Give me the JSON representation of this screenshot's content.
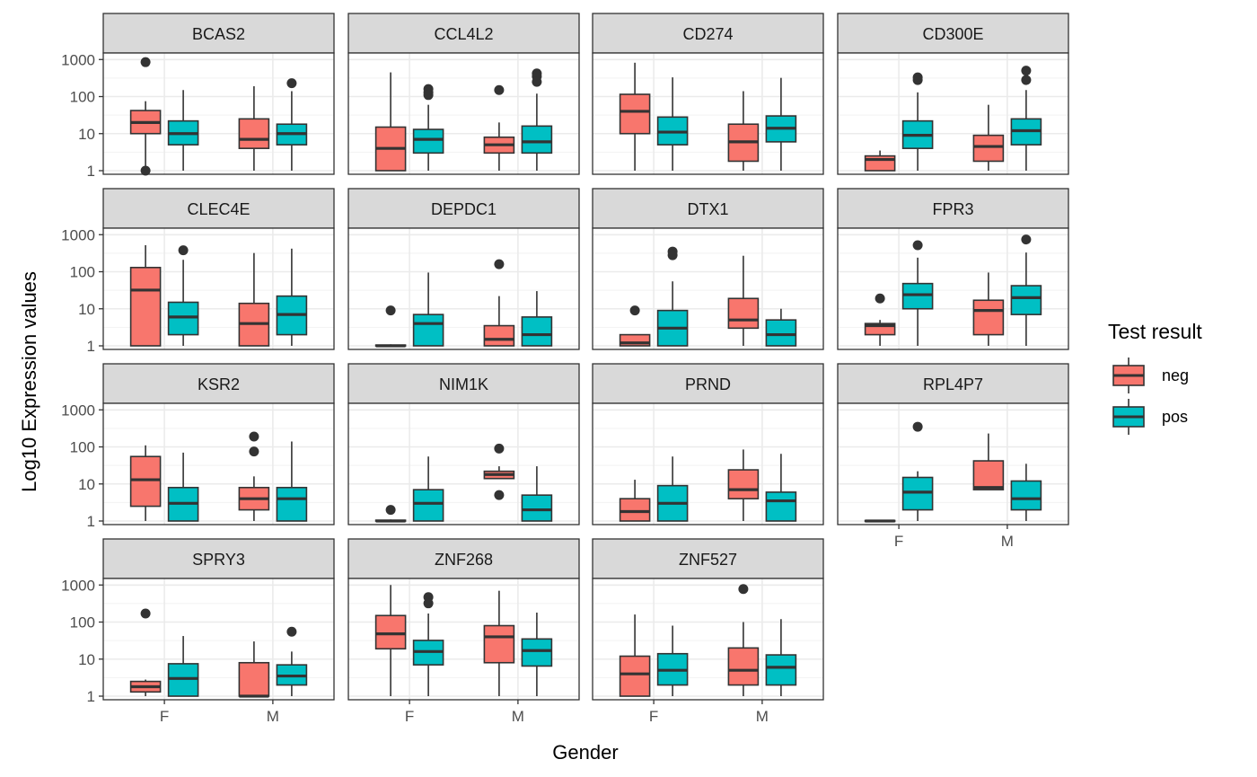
{
  "chart_data": {
    "type": "boxplot",
    "facet_layout": "4 columns, panels in reading order",
    "y_scale": "log10",
    "y_ticks": [
      1,
      10,
      100,
      1000
    ],
    "y_tick_labels": [
      "1",
      "10",
      "100",
      "1000"
    ],
    "ylim": [
      0.8,
      1500
    ],
    "x_categories": [
      "F",
      "M"
    ],
    "xlabel": "Gender",
    "ylabel": "Log10 Expression values",
    "grid": true,
    "legend": {
      "title": "Test result",
      "position": "right",
      "entries": [
        {
          "label": "neg",
          "color": "#F8766D"
        },
        {
          "label": "pos",
          "color": "#00BFC4"
        }
      ]
    },
    "colors": {
      "neg": "#F8766D",
      "pos": "#00BFC4",
      "strip": "#d9d9d9"
    },
    "panels": [
      {
        "title": "BCAS2",
        "boxes": [
          {
            "gender": "F",
            "group": "neg",
            "min": 1,
            "q1": 10,
            "median": 20,
            "q3": 42,
            "max": 75,
            "outliers": [
              850,
              1
            ]
          },
          {
            "gender": "F",
            "group": "pos",
            "min": 1,
            "q1": 5,
            "median": 10,
            "q3": 22,
            "max": 150,
            "outliers": []
          },
          {
            "gender": "M",
            "group": "neg",
            "min": 1,
            "q1": 4,
            "median": 7,
            "q3": 25,
            "max": 190,
            "outliers": []
          },
          {
            "gender": "M",
            "group": "pos",
            "min": 1,
            "q1": 5,
            "median": 10,
            "q3": 18,
            "max": 140,
            "outliers": [
              230
            ]
          }
        ]
      },
      {
        "title": "CCL4L2",
        "boxes": [
          {
            "gender": "F",
            "group": "neg",
            "min": 1,
            "q1": 1,
            "median": 4,
            "q3": 15,
            "max": 450,
            "outliers": []
          },
          {
            "gender": "F",
            "group": "pos",
            "min": 1,
            "q1": 3,
            "median": 7,
            "q3": 13,
            "max": 60,
            "outliers": [
              160,
              130,
              110
            ]
          },
          {
            "gender": "M",
            "group": "neg",
            "min": 1,
            "q1": 3,
            "median": 5,
            "q3": 8,
            "max": 20,
            "outliers": [
              150
            ]
          },
          {
            "gender": "M",
            "group": "pos",
            "min": 1,
            "q1": 3,
            "median": 6,
            "q3": 16,
            "max": 120,
            "outliers": [
              420,
              350,
              250
            ]
          }
        ]
      },
      {
        "title": "CD274",
        "boxes": [
          {
            "gender": "F",
            "group": "neg",
            "min": 1,
            "q1": 10,
            "median": 40,
            "q3": 115,
            "max": 820,
            "outliers": []
          },
          {
            "gender": "F",
            "group": "pos",
            "min": 1,
            "q1": 5,
            "median": 11,
            "q3": 28,
            "max": 330,
            "outliers": []
          },
          {
            "gender": "M",
            "group": "neg",
            "min": 1,
            "q1": 1.8,
            "median": 6,
            "q3": 18,
            "max": 140,
            "outliers": []
          },
          {
            "gender": "M",
            "group": "pos",
            "min": 1,
            "q1": 6,
            "median": 14,
            "q3": 30,
            "max": 320,
            "outliers": []
          }
        ]
      },
      {
        "title": "CD300E",
        "boxes": [
          {
            "gender": "F",
            "group": "neg",
            "min": 1,
            "q1": 1,
            "median": 2,
            "q3": 2.5,
            "max": 3.5,
            "outliers": []
          },
          {
            "gender": "F",
            "group": "pos",
            "min": 1,
            "q1": 4,
            "median": 9,
            "q3": 22,
            "max": 130,
            "outliers": [
              330,
              280
            ]
          },
          {
            "gender": "M",
            "group": "neg",
            "min": 1,
            "q1": 1.8,
            "median": 4.5,
            "q3": 9,
            "max": 60,
            "outliers": []
          },
          {
            "gender": "M",
            "group": "pos",
            "min": 1,
            "q1": 5,
            "median": 12,
            "q3": 25,
            "max": 150,
            "outliers": [
              500,
              280
            ]
          }
        ]
      },
      {
        "title": "CLEC4E",
        "boxes": [
          {
            "gender": "F",
            "group": "neg",
            "min": 1,
            "q1": 1,
            "median": 32,
            "q3": 130,
            "max": 520,
            "outliers": []
          },
          {
            "gender": "F",
            "group": "pos",
            "min": 1,
            "q1": 2,
            "median": 6,
            "q3": 15,
            "max": 210,
            "outliers": [
              380
            ]
          },
          {
            "gender": "M",
            "group": "neg",
            "min": 1,
            "q1": 1,
            "median": 4,
            "q3": 14,
            "max": 320,
            "outliers": []
          },
          {
            "gender": "M",
            "group": "pos",
            "min": 1,
            "q1": 2,
            "median": 7,
            "q3": 22,
            "max": 420,
            "outliers": []
          }
        ]
      },
      {
        "title": "DEPDC1",
        "boxes": [
          {
            "gender": "F",
            "group": "neg",
            "min": 1,
            "q1": 1,
            "median": 1,
            "q3": 1.05,
            "max": 1.1,
            "outliers": [
              9
            ]
          },
          {
            "gender": "F",
            "group": "pos",
            "min": 1,
            "q1": 1,
            "median": 4,
            "q3": 7,
            "max": 95,
            "outliers": []
          },
          {
            "gender": "M",
            "group": "neg",
            "min": 1,
            "q1": 1,
            "median": 1.5,
            "q3": 3.5,
            "max": 22,
            "outliers": [
              160
            ]
          },
          {
            "gender": "M",
            "group": "pos",
            "min": 1,
            "q1": 1,
            "median": 2,
            "q3": 6,
            "max": 30,
            "outliers": []
          }
        ]
      },
      {
        "title": "DTX1",
        "boxes": [
          {
            "gender": "F",
            "group": "neg",
            "min": 1,
            "q1": 1,
            "median": 1.2,
            "q3": 2,
            "max": 2,
            "outliers": [
              9
            ]
          },
          {
            "gender": "F",
            "group": "pos",
            "min": 1,
            "q1": 1,
            "median": 3,
            "q3": 9,
            "max": 55,
            "outliers": [
              350,
              280
            ]
          },
          {
            "gender": "M",
            "group": "neg",
            "min": 1,
            "q1": 3,
            "median": 5,
            "q3": 19,
            "max": 270,
            "outliers": []
          },
          {
            "gender": "M",
            "group": "pos",
            "min": 1,
            "q1": 1,
            "median": 2,
            "q3": 5,
            "max": 10,
            "outliers": []
          }
        ]
      },
      {
        "title": "FPR3",
        "boxes": [
          {
            "gender": "F",
            "group": "neg",
            "min": 1,
            "q1": 2,
            "median": 3.5,
            "q3": 4,
            "max": 5,
            "outliers": [
              19
            ]
          },
          {
            "gender": "F",
            "group": "pos",
            "min": 1,
            "q1": 10,
            "median": 24,
            "q3": 48,
            "max": 240,
            "outliers": [
              520
            ]
          },
          {
            "gender": "M",
            "group": "neg",
            "min": 1,
            "q1": 2,
            "median": 9,
            "q3": 17,
            "max": 95,
            "outliers": []
          },
          {
            "gender": "M",
            "group": "pos",
            "min": 1,
            "q1": 7,
            "median": 20,
            "q3": 42,
            "max": 330,
            "outliers": [
              740
            ]
          }
        ]
      },
      {
        "title": "KSR2",
        "boxes": [
          {
            "gender": "F",
            "group": "neg",
            "min": 1,
            "q1": 2.5,
            "median": 13,
            "q3": 55,
            "max": 110,
            "outliers": []
          },
          {
            "gender": "F",
            "group": "pos",
            "min": 1,
            "q1": 1,
            "median": 3,
            "q3": 8,
            "max": 70,
            "outliers": []
          },
          {
            "gender": "M",
            "group": "neg",
            "min": 1,
            "q1": 2,
            "median": 4,
            "q3": 8,
            "max": 16,
            "outliers": [
              190,
              75
            ]
          },
          {
            "gender": "M",
            "group": "pos",
            "min": 1,
            "q1": 1,
            "median": 4,
            "q3": 8,
            "max": 140,
            "outliers": []
          }
        ]
      },
      {
        "title": "NIM1K",
        "boxes": [
          {
            "gender": "F",
            "group": "neg",
            "min": 1,
            "q1": 1,
            "median": 1,
            "q3": 1.05,
            "max": 1.1,
            "outliers": [
              2
            ]
          },
          {
            "gender": "F",
            "group": "pos",
            "min": 1,
            "q1": 1,
            "median": 3,
            "q3": 7,
            "max": 55,
            "outliers": []
          },
          {
            "gender": "M",
            "group": "neg",
            "min": 14,
            "q1": 14,
            "median": 18,
            "q3": 22,
            "max": 30,
            "outliers": [
              90,
              5
            ]
          },
          {
            "gender": "M",
            "group": "pos",
            "min": 1,
            "q1": 1,
            "median": 2,
            "q3": 5,
            "max": 30,
            "outliers": []
          }
        ]
      },
      {
        "title": "PRND",
        "boxes": [
          {
            "gender": "F",
            "group": "neg",
            "min": 1,
            "q1": 1,
            "median": 1.8,
            "q3": 4,
            "max": 13,
            "outliers": []
          },
          {
            "gender": "F",
            "group": "pos",
            "min": 1,
            "q1": 1,
            "median": 3,
            "q3": 9,
            "max": 55,
            "outliers": []
          },
          {
            "gender": "M",
            "group": "neg",
            "min": 1,
            "q1": 4,
            "median": 7,
            "q3": 24,
            "max": 85,
            "outliers": []
          },
          {
            "gender": "M",
            "group": "pos",
            "min": 1,
            "q1": 1,
            "median": 3.5,
            "q3": 6,
            "max": 65,
            "outliers": []
          }
        ]
      },
      {
        "title": "RPL4P7",
        "boxes": [
          {
            "gender": "F",
            "group": "neg",
            "min": 1,
            "q1": 1,
            "median": 1,
            "q3": 1.03,
            "max": 1.05,
            "outliers": []
          },
          {
            "gender": "F",
            "group": "pos",
            "min": 1,
            "q1": 2,
            "median": 6,
            "q3": 15,
            "max": 22,
            "outliers": [
              350
            ]
          },
          {
            "gender": "M",
            "group": "neg",
            "min": 7,
            "q1": 7,
            "median": 8,
            "q3": 42,
            "max": 230,
            "outliers": []
          },
          {
            "gender": "M",
            "group": "pos",
            "min": 1,
            "q1": 2,
            "median": 4,
            "q3": 12,
            "max": 35,
            "outliers": []
          }
        ]
      },
      {
        "title": "SPRY3",
        "boxes": [
          {
            "gender": "F",
            "group": "neg",
            "min": 1,
            "q1": 1.3,
            "median": 1.8,
            "q3": 2.5,
            "max": 2.8,
            "outliers": [
              170
            ]
          },
          {
            "gender": "F",
            "group": "pos",
            "min": 1,
            "q1": 1,
            "median": 3,
            "q3": 7.5,
            "max": 42,
            "outliers": []
          },
          {
            "gender": "M",
            "group": "neg",
            "min": 1,
            "q1": 1,
            "median": 1,
            "q3": 8,
            "max": 30,
            "outliers": []
          },
          {
            "gender": "M",
            "group": "pos",
            "min": 1,
            "q1": 2,
            "median": 3.5,
            "q3": 7,
            "max": 16,
            "outliers": [
              55
            ]
          }
        ]
      },
      {
        "title": "ZNF268",
        "boxes": [
          {
            "gender": "F",
            "group": "neg",
            "min": 1,
            "q1": 19,
            "median": 48,
            "q3": 150,
            "max": 1000,
            "outliers": []
          },
          {
            "gender": "F",
            "group": "pos",
            "min": 1,
            "q1": 7,
            "median": 16,
            "q3": 32,
            "max": 170,
            "outliers": [
              470,
              320
            ]
          },
          {
            "gender": "M",
            "group": "neg",
            "min": 1,
            "q1": 8,
            "median": 40,
            "q3": 80,
            "max": 700,
            "outliers": []
          },
          {
            "gender": "M",
            "group": "pos",
            "min": 1,
            "q1": 6.5,
            "median": 17,
            "q3": 35,
            "max": 180,
            "outliers": []
          }
        ]
      },
      {
        "title": "ZNF527",
        "boxes": [
          {
            "gender": "F",
            "group": "neg",
            "min": 1,
            "q1": 1,
            "median": 4,
            "q3": 12,
            "max": 160,
            "outliers": []
          },
          {
            "gender": "F",
            "group": "pos",
            "min": 1,
            "q1": 2,
            "median": 5,
            "q3": 14,
            "max": 80,
            "outliers": []
          },
          {
            "gender": "M",
            "group": "neg",
            "min": 1,
            "q1": 2,
            "median": 5,
            "q3": 20,
            "max": 100,
            "outliers": [
              780
            ]
          },
          {
            "gender": "M",
            "group": "pos",
            "min": 1,
            "q1": 2,
            "median": 6,
            "q3": 13,
            "max": 120,
            "outliers": []
          }
        ]
      }
    ]
  }
}
